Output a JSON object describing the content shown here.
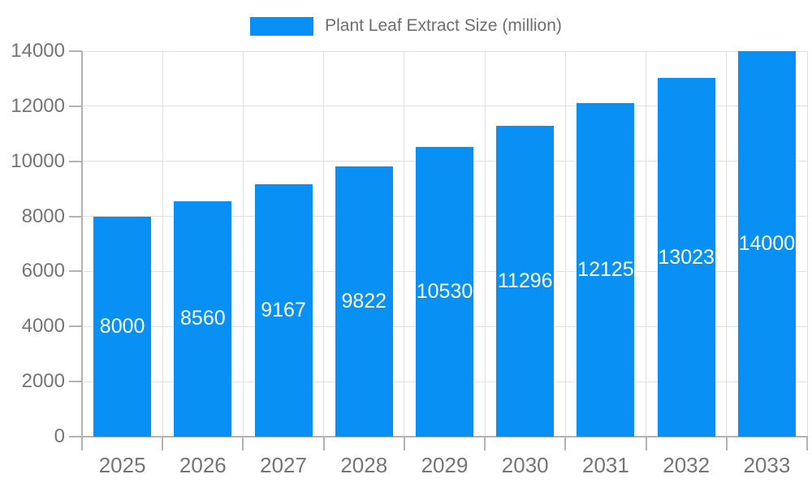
{
  "chart_data": {
    "type": "bar",
    "title": "",
    "legend": {
      "label": "Plant Leaf Extract Size (million)",
      "position": "top-center"
    },
    "categories": [
      "2025",
      "2026",
      "2027",
      "2028",
      "2029",
      "2030",
      "2031",
      "2032",
      "2033"
    ],
    "values": [
      8000,
      8560,
      9167,
      9822,
      10530,
      11296,
      12125,
      13023,
      14000
    ],
    "value_labels": [
      "8000",
      "8560",
      "9167",
      "9822",
      "10530",
      "11296",
      "12125",
      "13023",
      "14000"
    ],
    "xlabel": "",
    "ylabel": "",
    "ylim": [
      0,
      14000
    ],
    "yticks": [
      0,
      2000,
      4000,
      6000,
      8000,
      10000,
      12000,
      14000
    ],
    "grid": true,
    "legend_position": "top-center",
    "colors": {
      "bar": "#0890f5",
      "bar_label": "#ffffff",
      "axis_text": "#757575",
      "legend_text": "#6e6e6e",
      "gridline": "#e0e0e0",
      "axis_line": "#b3b3b3",
      "background": "#ffffff"
    }
  }
}
